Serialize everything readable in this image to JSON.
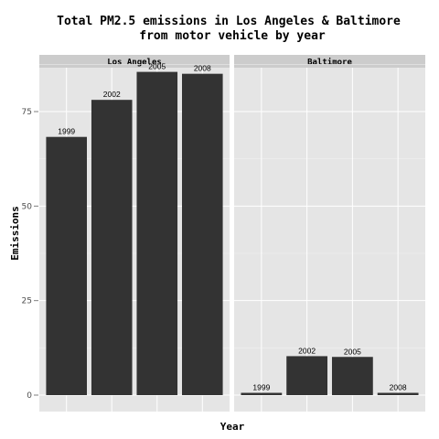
{
  "chart_data": {
    "type": "bar",
    "title": [
      "Total PM2.5 emissions in Los Angeles & Baltimore",
      "from motor vehicle by year"
    ],
    "xlabel": "Year",
    "ylabel": "Emissions",
    "ylim": [
      0,
      90
    ],
    "yticks": [
      0,
      25,
      50,
      75
    ],
    "grid": true,
    "panels": [
      {
        "name": "Los Angeles",
        "categories": [
          "1999",
          "2002",
          "2005",
          "2008"
        ],
        "values": [
          68.3,
          78.1,
          85.5,
          85.0
        ]
      },
      {
        "name": "Baltimore",
        "categories": [
          "1999",
          "2002",
          "2005",
          "2008"
        ],
        "values": [
          0.6,
          10.3,
          10.1,
          0.6
        ]
      }
    ],
    "colors": {
      "bar": "#333333",
      "panel_bg": "#e5e5e5",
      "strip_bg": "#cccccc",
      "grid": "#f2f2f2"
    }
  }
}
